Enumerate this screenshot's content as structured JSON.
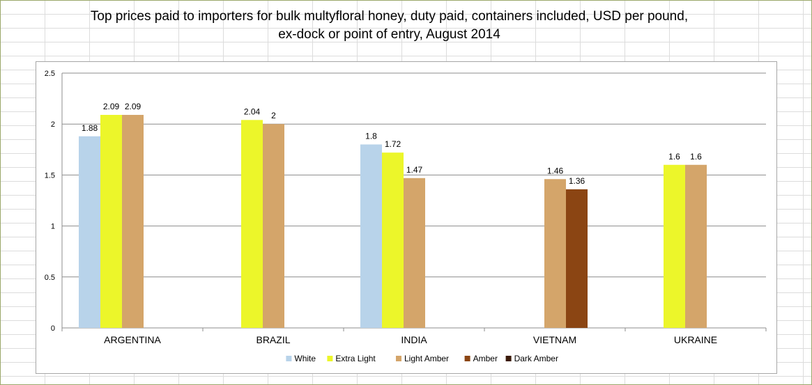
{
  "chart_data": {
    "type": "bar",
    "title_lines": [
      "Top prices paid to importers for bulk multyfloral honey, duty paid, containers included, USD per pound,",
      "ex-dock or point of entry, August 2014"
    ],
    "categories": [
      "ARGENTINA",
      "BRAZIL",
      "INDIA",
      "VIETNAM",
      "UKRAINE"
    ],
    "series": [
      {
        "name": "White",
        "color": "#b8d3ea",
        "values": [
          1.88,
          null,
          1.8,
          null,
          null
        ]
      },
      {
        "name": "Extra Light",
        "color": "#ecf62a",
        "values": [
          2.09,
          2.04,
          1.72,
          null,
          1.6
        ]
      },
      {
        "name": "Light Amber",
        "color": "#d4a56a",
        "values": [
          2.09,
          2,
          1.47,
          1.46,
          1.6
        ]
      },
      {
        "name": "Amber",
        "color": "#8b4513",
        "values": [
          null,
          null,
          null,
          1.36,
          null
        ]
      },
      {
        "name": "Dark Amber",
        "color": "#3a1a08",
        "values": [
          null,
          null,
          null,
          null,
          null
        ]
      }
    ],
    "data_label_text": {
      "White": [
        "1.88",
        "",
        "1.8",
        "",
        ""
      ],
      "Extra Light": [
        "2.09",
        "2.04",
        "1.72",
        "",
        "1.6"
      ],
      "Light Amber": [
        "2.09",
        "2",
        "1.47",
        "1.46",
        "1.6"
      ],
      "Amber": [
        "",
        "",
        "",
        "1.36",
        ""
      ],
      "Dark Amber": [
        "",
        "",
        "",
        "",
        ""
      ]
    },
    "ylim": [
      0,
      2.5
    ],
    "yticks": [
      0,
      0.5,
      1,
      1.5,
      2,
      2.5
    ],
    "ytick_labels": [
      "0",
      "0.5",
      "1",
      "1.5",
      "2",
      "2.5"
    ],
    "grid": true,
    "legend_position": "bottom",
    "xlabel": "",
    "ylabel": ""
  }
}
